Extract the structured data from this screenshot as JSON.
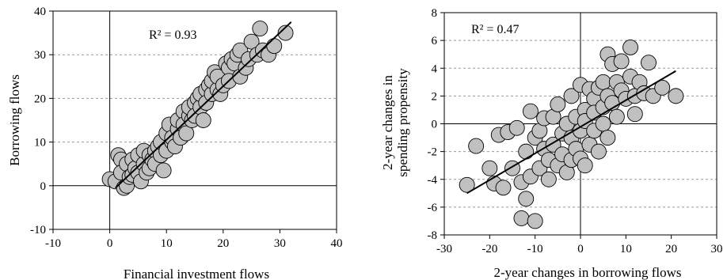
{
  "chart_data": [
    {
      "type": "scatter",
      "title": "",
      "xlabel": "Financial investment flows",
      "ylabel": "Borrowing flows",
      "xlim": [
        -10,
        40
      ],
      "ylim": [
        -10,
        40
      ],
      "xticks": [
        -10,
        0,
        10,
        20,
        30,
        40
      ],
      "yticks": [
        -10,
        0,
        10,
        20,
        30,
        40
      ],
      "xtick_labels": [
        "-10",
        "0",
        "10",
        "20",
        "30",
        "40"
      ],
      "ytick_labels": [
        "-10",
        "0",
        "10",
        "20",
        "30",
        "40"
      ],
      "grid": "horizontal dashed",
      "annotation": "R² = 0.93",
      "trendline": [
        [
          1,
          -0.5
        ],
        [
          32,
          37.5
        ]
      ],
      "marker_color": "#c0c0c0",
      "points": [
        [
          0,
          1.5
        ],
        [
          1,
          1
        ],
        [
          1.5,
          7
        ],
        [
          2,
          6
        ],
        [
          2,
          3
        ],
        [
          2.5,
          -0.5
        ],
        [
          3,
          5
        ],
        [
          3,
          0
        ],
        [
          3.5,
          2
        ],
        [
          4,
          6
        ],
        [
          4,
          2.5
        ],
        [
          4.5,
          4
        ],
        [
          5,
          3
        ],
        [
          5,
          7
        ],
        [
          5.5,
          1
        ],
        [
          6,
          5
        ],
        [
          6,
          8
        ],
        [
          6.5,
          3
        ],
        [
          7,
          7
        ],
        [
          7,
          4
        ],
        [
          7.5,
          6
        ],
        [
          8,
          8
        ],
        [
          8,
          5
        ],
        [
          8.5,
          9
        ],
        [
          9,
          7
        ],
        [
          9,
          10
        ],
        [
          9.5,
          3.5
        ],
        [
          10,
          8
        ],
        [
          10,
          12
        ],
        [
          10.5,
          14
        ],
        [
          11,
          10
        ],
        [
          11,
          11
        ],
        [
          11.5,
          9
        ],
        [
          12,
          13
        ],
        [
          12,
          15
        ],
        [
          12.5,
          11
        ],
        [
          13,
          17
        ],
        [
          13,
          14
        ],
        [
          13.5,
          12
        ],
        [
          14,
          16
        ],
        [
          14,
          18
        ],
        [
          14.5,
          15
        ],
        [
          15,
          19
        ],
        [
          15,
          16
        ],
        [
          15.5,
          20
        ],
        [
          16,
          18
        ],
        [
          16,
          21
        ],
        [
          16.5,
          15
        ],
        [
          17,
          22
        ],
        [
          17,
          19
        ],
        [
          17.5,
          23
        ],
        [
          18,
          21
        ],
        [
          18,
          24
        ],
        [
          18.5,
          26
        ],
        [
          19,
          22
        ],
        [
          19,
          25
        ],
        [
          19.5,
          21
        ],
        [
          20,
          23
        ],
        [
          20.5,
          28
        ],
        [
          21,
          27
        ],
        [
          21,
          24
        ],
        [
          21.5,
          29
        ],
        [
          22,
          28
        ],
        [
          22.5,
          30
        ],
        [
          23,
          25
        ],
        [
          23,
          31
        ],
        [
          24,
          27
        ],
        [
          24.5,
          29
        ],
        [
          25,
          33
        ],
        [
          26,
          30
        ],
        [
          26.5,
          36
        ],
        [
          27,
          31
        ],
        [
          28,
          30
        ],
        [
          29,
          32
        ],
        [
          31,
          35
        ]
      ]
    },
    {
      "type": "scatter",
      "title": "",
      "xlabel": "2-year changes in borrowing flows",
      "ylabel": "2-year changes in spending propensity",
      "ylabel_lines": [
        "2-year changes in",
        "spending propensity"
      ],
      "xlim": [
        -30,
        30
      ],
      "ylim": [
        -8,
        8
      ],
      "xticks": [
        -30,
        -20,
        -10,
        0,
        10,
        20,
        30
      ],
      "yticks": [
        -8,
        -6,
        -4,
        -2,
        0,
        2,
        4,
        6,
        8
      ],
      "xtick_labels": [
        "-30",
        "-20",
        "-10",
        "0",
        "10",
        "20",
        "30"
      ],
      "ytick_labels": [
        "-8",
        "-6",
        "-4",
        "-2",
        "0",
        "2",
        "4",
        "6",
        "8"
      ],
      "grid": "horizontal dashed",
      "annotation": "R² = 0.47",
      "trendline": [
        [
          -25,
          -5
        ],
        [
          21,
          3.8
        ]
      ],
      "marker_color": "#c0c0c0",
      "points": [
        [
          -25,
          -4.4
        ],
        [
          -23,
          -1.6
        ],
        [
          -20,
          -3.2
        ],
        [
          -19,
          -4.3
        ],
        [
          -18,
          -0.8
        ],
        [
          -17,
          -4.6
        ],
        [
          -16,
          -0.6
        ],
        [
          -15,
          -3.2
        ],
        [
          -14,
          -0.3
        ],
        [
          -13,
          -4.2
        ],
        [
          -13,
          -6.8
        ],
        [
          -12,
          -5.4
        ],
        [
          -12,
          -2
        ],
        [
          -11,
          0.9
        ],
        [
          -11,
          -3.8
        ],
        [
          -10,
          -1
        ],
        [
          -10,
          -7
        ],
        [
          -9,
          -3.2
        ],
        [
          -9,
          -0.5
        ],
        [
          -8,
          -1.8
        ],
        [
          -8,
          0.4
        ],
        [
          -7,
          -2.6
        ],
        [
          -7,
          -4
        ],
        [
          -6,
          0.5
        ],
        [
          -6,
          -1.5
        ],
        [
          -5,
          -3
        ],
        [
          -5,
          1.4
        ],
        [
          -4,
          -0.7
        ],
        [
          -4,
          -2.2
        ],
        [
          -3,
          0
        ],
        [
          -3,
          -3.5
        ],
        [
          -2,
          -1
        ],
        [
          -2,
          2
        ],
        [
          -2,
          -2.6
        ],
        [
          -1,
          0.5
        ],
        [
          -1,
          -1.8
        ],
        [
          0,
          2.8
        ],
        [
          0,
          -0.5
        ],
        [
          0,
          -2.5
        ],
        [
          1,
          1
        ],
        [
          1,
          -3
        ],
        [
          1,
          0.2
        ],
        [
          2,
          2.5
        ],
        [
          2,
          -1.5
        ],
        [
          3,
          1.8
        ],
        [
          3,
          -0.5
        ],
        [
          3,
          0.8
        ],
        [
          4,
          2.6
        ],
        [
          4,
          -2
        ],
        [
          5,
          1.2
        ],
        [
          5,
          3
        ],
        [
          5,
          0
        ],
        [
          6,
          2
        ],
        [
          6,
          5
        ],
        [
          6,
          -1
        ],
        [
          7,
          4.3
        ],
        [
          7,
          1.5
        ],
        [
          8,
          3
        ],
        [
          8,
          0.5
        ],
        [
          9,
          2.4
        ],
        [
          9,
          4.5
        ],
        [
          10,
          1.8
        ],
        [
          11,
          3.4
        ],
        [
          11,
          5.5
        ],
        [
          12,
          2
        ],
        [
          12,
          0.7
        ],
        [
          13,
          3
        ],
        [
          14,
          2.2
        ],
        [
          15,
          4.4
        ],
        [
          16,
          2
        ],
        [
          18,
          2.6
        ],
        [
          21,
          2
        ]
      ]
    }
  ]
}
